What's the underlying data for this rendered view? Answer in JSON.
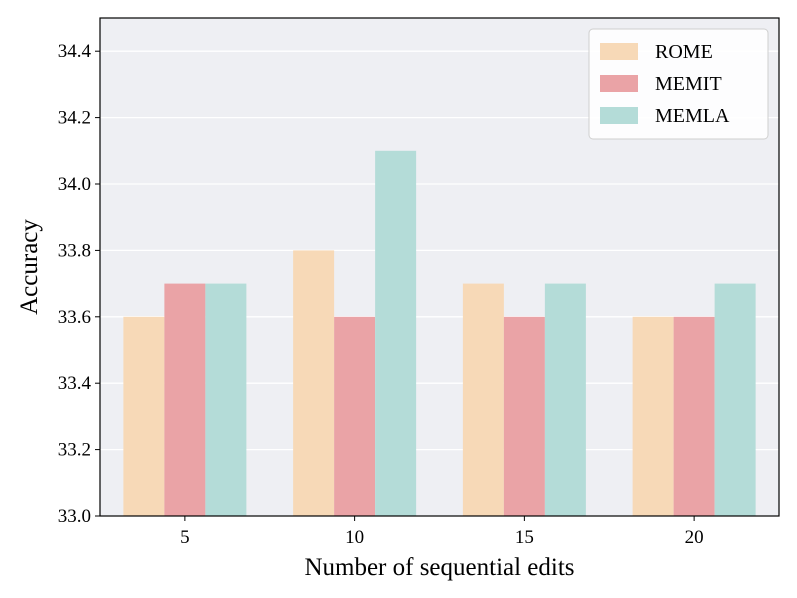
{
  "chart_data": {
    "type": "bar",
    "title": "",
    "xlabel": "Number of sequential edits",
    "ylabel": "Accuracy",
    "categories": [
      "5",
      "10",
      "15",
      "20"
    ],
    "series": [
      {
        "name": "ROME",
        "color": "#f7d9b7",
        "values": [
          33.6,
          33.8,
          33.7,
          33.6
        ]
      },
      {
        "name": "MEMIT",
        "color": "#eaa3a6",
        "values": [
          33.7,
          33.6,
          33.6,
          33.6
        ]
      },
      {
        "name": "MEMLA",
        "color": "#b4dcd8",
        "values": [
          33.7,
          34.1,
          33.7,
          33.7
        ]
      }
    ],
    "ylim": [
      33.0,
      34.5
    ],
    "yticks": [
      "33.0",
      "33.2",
      "33.4",
      "33.6",
      "33.8",
      "34.0",
      "34.2",
      "34.4"
    ],
    "grid": true,
    "legend_position": "top-right",
    "background_color": "#eeeff3"
  }
}
